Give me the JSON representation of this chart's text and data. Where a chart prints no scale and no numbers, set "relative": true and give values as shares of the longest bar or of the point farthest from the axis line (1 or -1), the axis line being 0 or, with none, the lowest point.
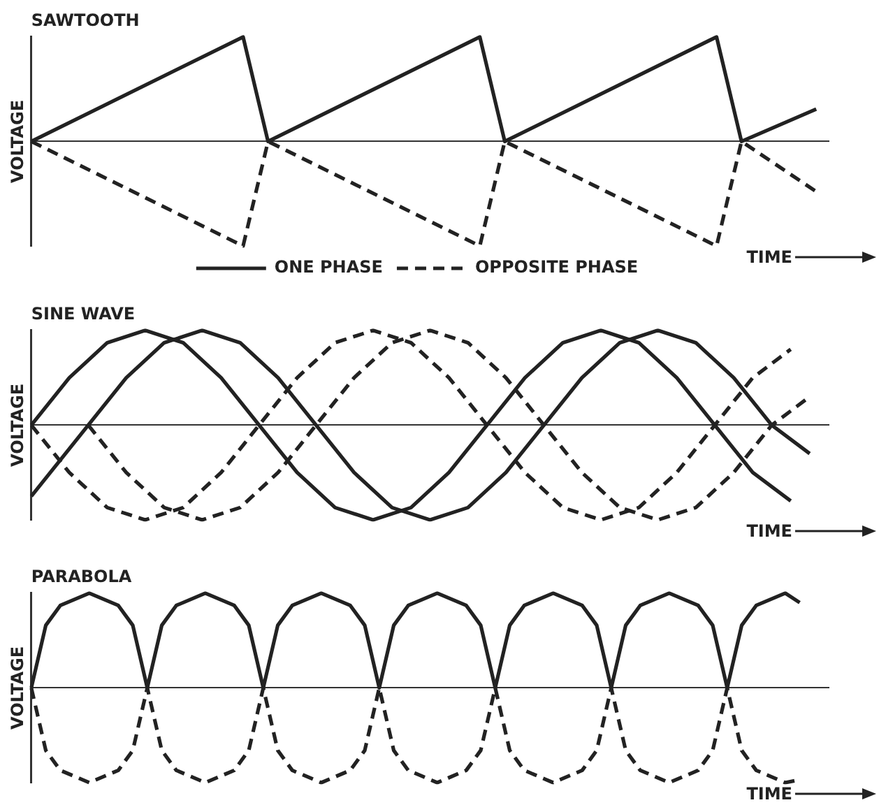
{
  "chart_data": [
    {
      "type": "line",
      "title": "SAWTOOTH",
      "ylabel": "VOLTAGE",
      "xlabel": "TIME",
      "relative": true,
      "legend": "bottom",
      "categories": [
        null,
        null,
        null,
        null,
        null,
        null,
        null,
        null,
        null,
        null,
        null,
        null,
        null,
        null,
        null,
        null,
        null,
        null,
        null,
        null,
        null,
        null,
        null,
        null,
        null,
        null,
        null,
        null,
        null,
        null,
        null,
        null,
        null,
        null,
        null,
        null,
        null,
        null,
        null,
        null,
        null,
        null,
        null,
        null,
        null,
        null,
        null,
        null,
        null,
        null,
        null,
        null,
        null,
        null,
        null,
        null,
        null,
        null,
        null,
        null,
        null,
        null,
        null,
        null,
        null
      ],
      "series": [
        {
          "name": "ONE PHASE",
          "color": "#222222",
          "line_style": "solid",
          "values": [
            0,
            null,
            null,
            null,
            null,
            null,
            null,
            null,
            null,
            null,
            null,
            null,
            null,
            null,
            null,
            null,
            null,
            1,
            null,
            0,
            null,
            null,
            null,
            null,
            null,
            null,
            null,
            null,
            null,
            null,
            null,
            null,
            null,
            null,
            null,
            null,
            1,
            null,
            0,
            null,
            null,
            null,
            null,
            null,
            null,
            null,
            null,
            null,
            null,
            null,
            null,
            null,
            null,
            null,
            null,
            1,
            null,
            0,
            null,
            null,
            null,
            null,
            null,
            0.31,
            null
          ]
        },
        {
          "name": "OPPOSITE PHASE",
          "color": "#222222",
          "line_style": "dashed",
          "values": [
            0,
            null,
            null,
            null,
            null,
            null,
            null,
            null,
            null,
            null,
            null,
            null,
            null,
            null,
            null,
            null,
            null,
            -1,
            null,
            0,
            null,
            null,
            null,
            null,
            null,
            null,
            null,
            null,
            null,
            null,
            null,
            null,
            null,
            null,
            null,
            null,
            -1,
            null,
            0,
            null,
            null,
            null,
            null,
            null,
            null,
            null,
            null,
            null,
            null,
            null,
            null,
            null,
            null,
            null,
            null,
            -1,
            null,
            0,
            null,
            null,
            null,
            null,
            null,
            -0.48,
            null
          ]
        }
      ]
    },
    {
      "type": "line",
      "title": "SINE WAVE",
      "ylabel": "VOLTAGE",
      "xlabel": "TIME",
      "relative": true,
      "categories": [
        null,
        null,
        null,
        null,
        null,
        null,
        null,
        null,
        null,
        null,
        null,
        null,
        null,
        null,
        null,
        null,
        null,
        null,
        null,
        null,
        null,
        null,
        null,
        null,
        null,
        null,
        null,
        null,
        null,
        null,
        null,
        null,
        null,
        null,
        null,
        null,
        null,
        null,
        null,
        null,
        null,
        null,
        null
      ],
      "series": [
        {
          "color": "#222222",
          "line_style": "solid",
          "values": [
            0,
            null,
            0.5,
            null,
            0.87,
            null,
            1,
            null,
            0.87,
            null,
            0.5,
            null,
            0,
            null,
            -0.5,
            null,
            -0.87,
            null,
            -1,
            null,
            -0.87,
            null,
            -0.5,
            null,
            0,
            null,
            0.5,
            null,
            0.87,
            null,
            1,
            null,
            0.87,
            null,
            0.5,
            null,
            0,
            null,
            -0.5,
            null,
            -0.8,
            null,
            null
          ]
        },
        {
          "color": "#222222",
          "line_style": "solid",
          "values": [
            -0.75,
            null,
            null,
            0,
            null,
            0.5,
            null,
            0.87,
            null,
            1,
            null,
            0.87,
            null,
            0.5,
            null,
            0,
            null,
            -0.5,
            null,
            -0.87,
            null,
            -1,
            null,
            -0.87,
            null,
            -0.5,
            null,
            0,
            null,
            0.5,
            null,
            0.87,
            null,
            1,
            null,
            0.87,
            null,
            0.5,
            null,
            0,
            null,
            -0.3,
            null
          ]
        },
        {
          "color": "#222222",
          "line_style": "dashed",
          "values": [
            0,
            null,
            -0.5,
            null,
            -0.87,
            null,
            -1,
            null,
            -0.87,
            null,
            -0.5,
            null,
            0,
            null,
            0.5,
            null,
            0.87,
            null,
            1,
            null,
            0.87,
            null,
            0.5,
            null,
            0,
            null,
            -0.5,
            null,
            -0.87,
            null,
            -1,
            null,
            -0.87,
            null,
            -0.5,
            null,
            0,
            null,
            0.5,
            null,
            0.8,
            null,
            null
          ]
        },
        {
          "color": "#222222",
          "line_style": "dashed",
          "values": [
            null,
            null,
            null,
            0,
            null,
            -0.5,
            null,
            -0.87,
            null,
            -1,
            null,
            -0.87,
            null,
            -0.5,
            null,
            0,
            null,
            0.5,
            null,
            0.87,
            null,
            1,
            null,
            0.87,
            null,
            0.5,
            null,
            0,
            null,
            -0.5,
            null,
            -0.87,
            null,
            -1,
            null,
            -0.87,
            null,
            -0.5,
            null,
            0,
            null,
            0.3,
            null
          ]
        }
      ]
    },
    {
      "type": "line",
      "title": "PARABOLA",
      "ylabel": "VOLTAGE",
      "xlabel": "TIME",
      "relative": true,
      "categories": [
        null,
        null,
        null,
        null,
        null,
        null,
        null,
        null,
        null,
        null,
        null,
        null,
        null,
        null,
        null,
        null,
        null,
        null,
        null,
        null,
        null,
        null,
        null,
        null,
        null,
        null,
        null,
        null,
        null,
        null,
        null,
        null,
        null,
        null,
        null,
        null,
        null,
        null,
        null,
        null,
        null,
        null,
        null,
        null,
        null,
        null,
        null,
        null,
        null,
        null,
        null,
        null,
        null,
        null,
        null,
        null
      ],
      "series": [
        {
          "color": "#222222",
          "line_style": "solid",
          "values": [
            0,
            0.66,
            0.87,
            null,
            1,
            null,
            0.87,
            0.66,
            0,
            0.66,
            0.87,
            null,
            1,
            null,
            0.87,
            0.66,
            0,
            0.66,
            0.87,
            null,
            1,
            null,
            0.87,
            0.66,
            0,
            0.66,
            0.87,
            null,
            1,
            null,
            0.87,
            0.66,
            0,
            0.66,
            0.87,
            null,
            1,
            null,
            0.87,
            0.66,
            0,
            0.66,
            0.87,
            null,
            1,
            null,
            0.87,
            0.66,
            0,
            0.66,
            0.87,
            null,
            1,
            0.9,
            null,
            null
          ]
        },
        {
          "color": "#222222",
          "line_style": "dashed",
          "values": [
            0,
            -0.66,
            -0.87,
            null,
            -1,
            null,
            -0.87,
            -0.66,
            0,
            -0.66,
            -0.87,
            null,
            -1,
            null,
            -0.87,
            -0.66,
            0,
            -0.66,
            -0.87,
            null,
            -1,
            null,
            -0.87,
            -0.66,
            0,
            -0.66,
            -0.87,
            null,
            -1,
            null,
            -0.87,
            -0.66,
            0,
            -0.66,
            -0.87,
            null,
            -1,
            null,
            -0.87,
            -0.66,
            0,
            -0.66,
            -0.87,
            null,
            -1,
            null,
            -0.87,
            -0.66,
            0,
            -0.66,
            -0.87,
            null,
            -1,
            -0.97,
            null,
            null
          ]
        }
      ]
    }
  ]
}
